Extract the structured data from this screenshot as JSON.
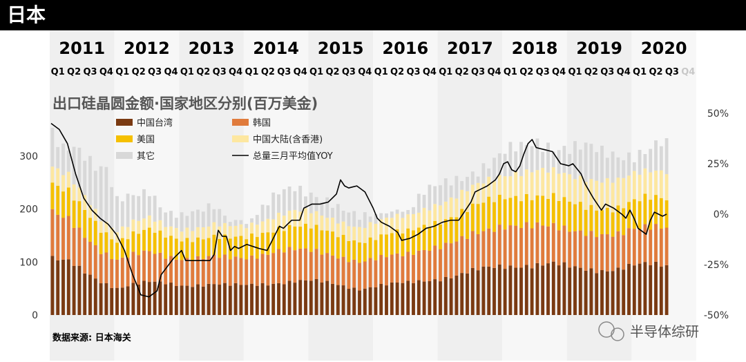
{
  "header": {
    "title": "日本"
  },
  "chart_data": {
    "type": "bar",
    "stacked": true,
    "title": "出口硅晶圆金额·国家地区分别(百万美金)",
    "years": [
      "2011",
      "2012",
      "2013",
      "2014",
      "2015",
      "2016",
      "2017",
      "2018",
      "2019",
      "2020"
    ],
    "quarters": [
      "Q1",
      "Q2",
      "Q3",
      "Q4"
    ],
    "future_quarter_label": "Q4",
    "left_axis": {
      "ylim": [
        0,
        350
      ],
      "ticks": [
        "0",
        "100",
        "200",
        "300"
      ]
    },
    "right_axis": {
      "ylim": [
        -50,
        50
      ],
      "ticks": [
        "-50%",
        "-25%",
        "0%",
        "25%",
        "50%"
      ]
    },
    "legend": [
      {
        "key": "taiwan",
        "label": "中国台湾",
        "color": "#7a3a12"
      },
      {
        "key": "korea",
        "label": "韩国",
        "color": "#e07b3c"
      },
      {
        "key": "usa",
        "label": "美国",
        "color": "#f5c000"
      },
      {
        "key": "mainland",
        "label": "中国大陆(含香港)",
        "color": "#fde7a0"
      },
      {
        "key": "other",
        "label": "其它",
        "color": "#d8d8d8"
      },
      {
        "key": "yoy",
        "label": "总量三月平均值YOY",
        "color": "#000000"
      }
    ],
    "anchors": {
      "total": [
        [
          0,
          340
        ],
        [
          2,
          320
        ],
        [
          4,
          330
        ],
        [
          6,
          310
        ],
        [
          8,
          280
        ],
        [
          10,
          270
        ],
        [
          12,
          210
        ],
        [
          15,
          225
        ],
        [
          18,
          240
        ],
        [
          21,
          200
        ],
        [
          24,
          185
        ],
        [
          27,
          190
        ],
        [
          30,
          205
        ],
        [
          33,
          185
        ],
        [
          36,
          170
        ],
        [
          39,
          200
        ],
        [
          42,
          225
        ],
        [
          45,
          240
        ],
        [
          48,
          235
        ],
        [
          51,
          220
        ],
        [
          54,
          195
        ],
        [
          57,
          180
        ],
        [
          60,
          190
        ],
        [
          63,
          195
        ],
        [
          66,
          200
        ],
        [
          69,
          230
        ],
        [
          72,
          240
        ],
        [
          75,
          255
        ],
        [
          78,
          275
        ],
        [
          81,
          290
        ],
        [
          84,
          305
        ],
        [
          87,
          310
        ],
        [
          90,
          325
        ],
        [
          93,
          325
        ],
        [
          96,
          320
        ],
        [
          99,
          315
        ],
        [
          102,
          300
        ],
        [
          105,
          300
        ],
        [
          108,
          310
        ],
        [
          111,
          320
        ],
        [
          113,
          325
        ],
        [
          114,
          315
        ]
      ],
      "taiwan": [
        [
          0,
          110
        ],
        [
          3,
          100
        ],
        [
          6,
          78
        ],
        [
          9,
          62
        ],
        [
          12,
          52
        ],
        [
          15,
          60
        ],
        [
          18,
          62
        ],
        [
          21,
          58
        ],
        [
          24,
          55
        ],
        [
          27,
          58
        ],
        [
          30,
          60
        ],
        [
          33,
          56
        ],
        [
          36,
          55
        ],
        [
          39,
          58
        ],
        [
          42,
          62
        ],
        [
          45,
          65
        ],
        [
          48,
          64
        ],
        [
          51,
          60
        ],
        [
          54,
          55
        ],
        [
          57,
          50
        ],
        [
          60,
          55
        ],
        [
          63,
          58
        ],
        [
          66,
          60
        ],
        [
          69,
          65
        ],
        [
          72,
          70
        ],
        [
          75,
          75
        ],
        [
          78,
          82
        ],
        [
          81,
          88
        ],
        [
          84,
          93
        ],
        [
          87,
          95
        ],
        [
          90,
          95
        ],
        [
          93,
          95
        ],
        [
          96,
          90
        ],
        [
          99,
          88
        ],
        [
          102,
          86
        ],
        [
          105,
          87
        ],
        [
          108,
          92
        ],
        [
          111,
          95
        ],
        [
          114,
          95
        ]
      ],
      "korea": [
        [
          0,
          85
        ],
        [
          3,
          80
        ],
        [
          6,
          70
        ],
        [
          9,
          58
        ],
        [
          12,
          52
        ],
        [
          15,
          55
        ],
        [
          18,
          58
        ],
        [
          21,
          52
        ],
        [
          24,
          50
        ],
        [
          27,
          50
        ],
        [
          30,
          52
        ],
        [
          33,
          52
        ],
        [
          36,
          52
        ],
        [
          39,
          55
        ],
        [
          42,
          60
        ],
        [
          45,
          60
        ],
        [
          48,
          58
        ],
        [
          51,
          55
        ],
        [
          54,
          52
        ],
        [
          57,
          50
        ],
        [
          60,
          52
        ],
        [
          63,
          55
        ],
        [
          66,
          55
        ],
        [
          69,
          58
        ],
        [
          72,
          60
        ],
        [
          75,
          65
        ],
        [
          78,
          70
        ],
        [
          81,
          72
        ],
        [
          84,
          75
        ],
        [
          87,
          75
        ],
        [
          90,
          75
        ],
        [
          93,
          72
        ],
        [
          96,
          70
        ],
        [
          99,
          68
        ],
        [
          102,
          66
        ],
        [
          105,
          65
        ],
        [
          108,
          70
        ],
        [
          111,
          72
        ],
        [
          114,
          72
        ]
      ],
      "usa": [
        [
          0,
          55
        ],
        [
          3,
          52
        ],
        [
          6,
          48
        ],
        [
          9,
          40
        ],
        [
          12,
          35
        ],
        [
          15,
          40
        ],
        [
          18,
          42
        ],
        [
          21,
          38
        ],
        [
          24,
          36
        ],
        [
          27,
          37
        ],
        [
          30,
          38
        ],
        [
          33,
          38
        ],
        [
          36,
          38
        ],
        [
          39,
          40
        ],
        [
          42,
          42
        ],
        [
          45,
          45
        ],
        [
          48,
          45
        ],
        [
          51,
          42
        ],
        [
          54,
          40
        ],
        [
          57,
          38
        ],
        [
          60,
          40
        ],
        [
          63,
          42
        ],
        [
          66,
          42
        ],
        [
          69,
          45
        ],
        [
          72,
          48
        ],
        [
          75,
          50
        ],
        [
          78,
          52
        ],
        [
          81,
          55
        ],
        [
          84,
          55
        ],
        [
          87,
          55
        ],
        [
          90,
          55
        ],
        [
          93,
          54
        ],
        [
          96,
          52
        ],
        [
          99,
          50
        ],
        [
          102,
          50
        ],
        [
          105,
          50
        ],
        [
          108,
          52
        ],
        [
          111,
          54
        ],
        [
          114,
          54
        ]
      ],
      "mainland": [
        [
          0,
          30
        ],
        [
          3,
          30
        ],
        [
          6,
          28
        ],
        [
          9,
          22
        ],
        [
          12,
          20
        ],
        [
          15,
          22
        ],
        [
          18,
          22
        ],
        [
          21,
          20
        ],
        [
          24,
          20
        ],
        [
          27,
          20
        ],
        [
          30,
          22
        ],
        [
          33,
          22
        ],
        [
          36,
          22
        ],
        [
          39,
          24
        ],
        [
          42,
          26
        ],
        [
          45,
          28
        ],
        [
          48,
          28
        ],
        [
          51,
          27
        ],
        [
          54,
          27
        ],
        [
          57,
          27
        ],
        [
          60,
          28
        ],
        [
          63,
          30
        ],
        [
          66,
          30
        ],
        [
          69,
          32
        ],
        [
          72,
          33
        ],
        [
          75,
          34
        ],
        [
          78,
          38
        ],
        [
          81,
          40
        ],
        [
          84,
          42
        ],
        [
          87,
          45
        ],
        [
          90,
          48
        ],
        [
          93,
          50
        ],
        [
          96,
          52
        ],
        [
          99,
          52
        ],
        [
          102,
          52
        ],
        [
          105,
          52
        ],
        [
          108,
          52
        ],
        [
          111,
          52
        ],
        [
          114,
          52
        ]
      ],
      "yoy": [
        [
          0,
          45
        ],
        [
          2,
          42
        ],
        [
          4,
          35
        ],
        [
          6,
          20
        ],
        [
          8,
          8
        ],
        [
          10,
          2
        ],
        [
          12,
          -2
        ],
        [
          14,
          -5
        ],
        [
          16,
          -10
        ],
        [
          18,
          -18
        ],
        [
          20,
          -30
        ],
        [
          22,
          -40
        ],
        [
          24,
          -41
        ],
        [
          26,
          -38
        ],
        [
          27,
          -30
        ],
        [
          30,
          -22
        ],
        [
          32,
          -18
        ],
        [
          33,
          -23
        ],
        [
          36,
          -23
        ],
        [
          39,
          -23
        ],
        [
          40,
          -20
        ],
        [
          41,
          -8
        ],
        [
          42,
          -11
        ],
        [
          43,
          -11
        ],
        [
          44,
          -18
        ],
        [
          45,
          -16
        ],
        [
          46,
          -17
        ],
        [
          48,
          -15
        ],
        [
          51,
          -17
        ],
        [
          53,
          -18
        ],
        [
          55,
          -10
        ],
        [
          56,
          -6
        ],
        [
          57,
          -7
        ],
        [
          59,
          -3
        ],
        [
          61,
          -3
        ],
        [
          62,
          3
        ],
        [
          64,
          5
        ],
        [
          66,
          5
        ],
        [
          68,
          6
        ],
        [
          70,
          10
        ],
        [
          71,
          17
        ],
        [
          72,
          14
        ],
        [
          73,
          13
        ],
        [
          75,
          14
        ],
        [
          77,
          11
        ],
        [
          79,
          3
        ],
        [
          80,
          -2
        ],
        [
          81,
          -4
        ],
        [
          83,
          -6
        ],
        [
          85,
          -9
        ],
        [
          86,
          -13
        ],
        [
          88,
          -12
        ],
        [
          90,
          -10
        ],
        [
          92,
          -7
        ],
        [
          94,
          -6
        ],
        [
          96,
          -4
        ],
        [
          98,
          -3
        ],
        [
          100,
          -3
        ],
        [
          101,
          0
        ],
        [
          103,
          6
        ],
        [
          104,
          11
        ],
        [
          106,
          13
        ],
        [
          107,
          14
        ],
        [
          109,
          17
        ],
        [
          110,
          20
        ],
        [
          111,
          25
        ],
        [
          112,
          26
        ],
        [
          113,
          22
        ],
        [
          114,
          21
        ],
        [
          115,
          24
        ],
        [
          116,
          30
        ],
        [
          117,
          35
        ],
        [
          118,
          37
        ],
        [
          119,
          33
        ],
        [
          121,
          32
        ],
        [
          123,
          31
        ],
        [
          125,
          25
        ],
        [
          127,
          24
        ],
        [
          128,
          25
        ],
        [
          130,
          20
        ],
        [
          131,
          15
        ],
        [
          133,
          8
        ],
        [
          135,
          2
        ],
        [
          136,
          5
        ],
        [
          138,
          3
        ],
        [
          140,
          0
        ],
        [
          141,
          -2
        ],
        [
          142,
          2
        ],
        [
          143,
          -2
        ],
        [
          144,
          -7
        ],
        [
          146,
          -10
        ],
        [
          147,
          -3
        ],
        [
          148,
          1
        ],
        [
          150,
          -1
        ],
        [
          151,
          0
        ]
      ]
    },
    "yoy_months": 152,
    "bar_months": 115,
    "source": "数据来源: 日本海关",
    "watermark": "半导体综研"
  }
}
